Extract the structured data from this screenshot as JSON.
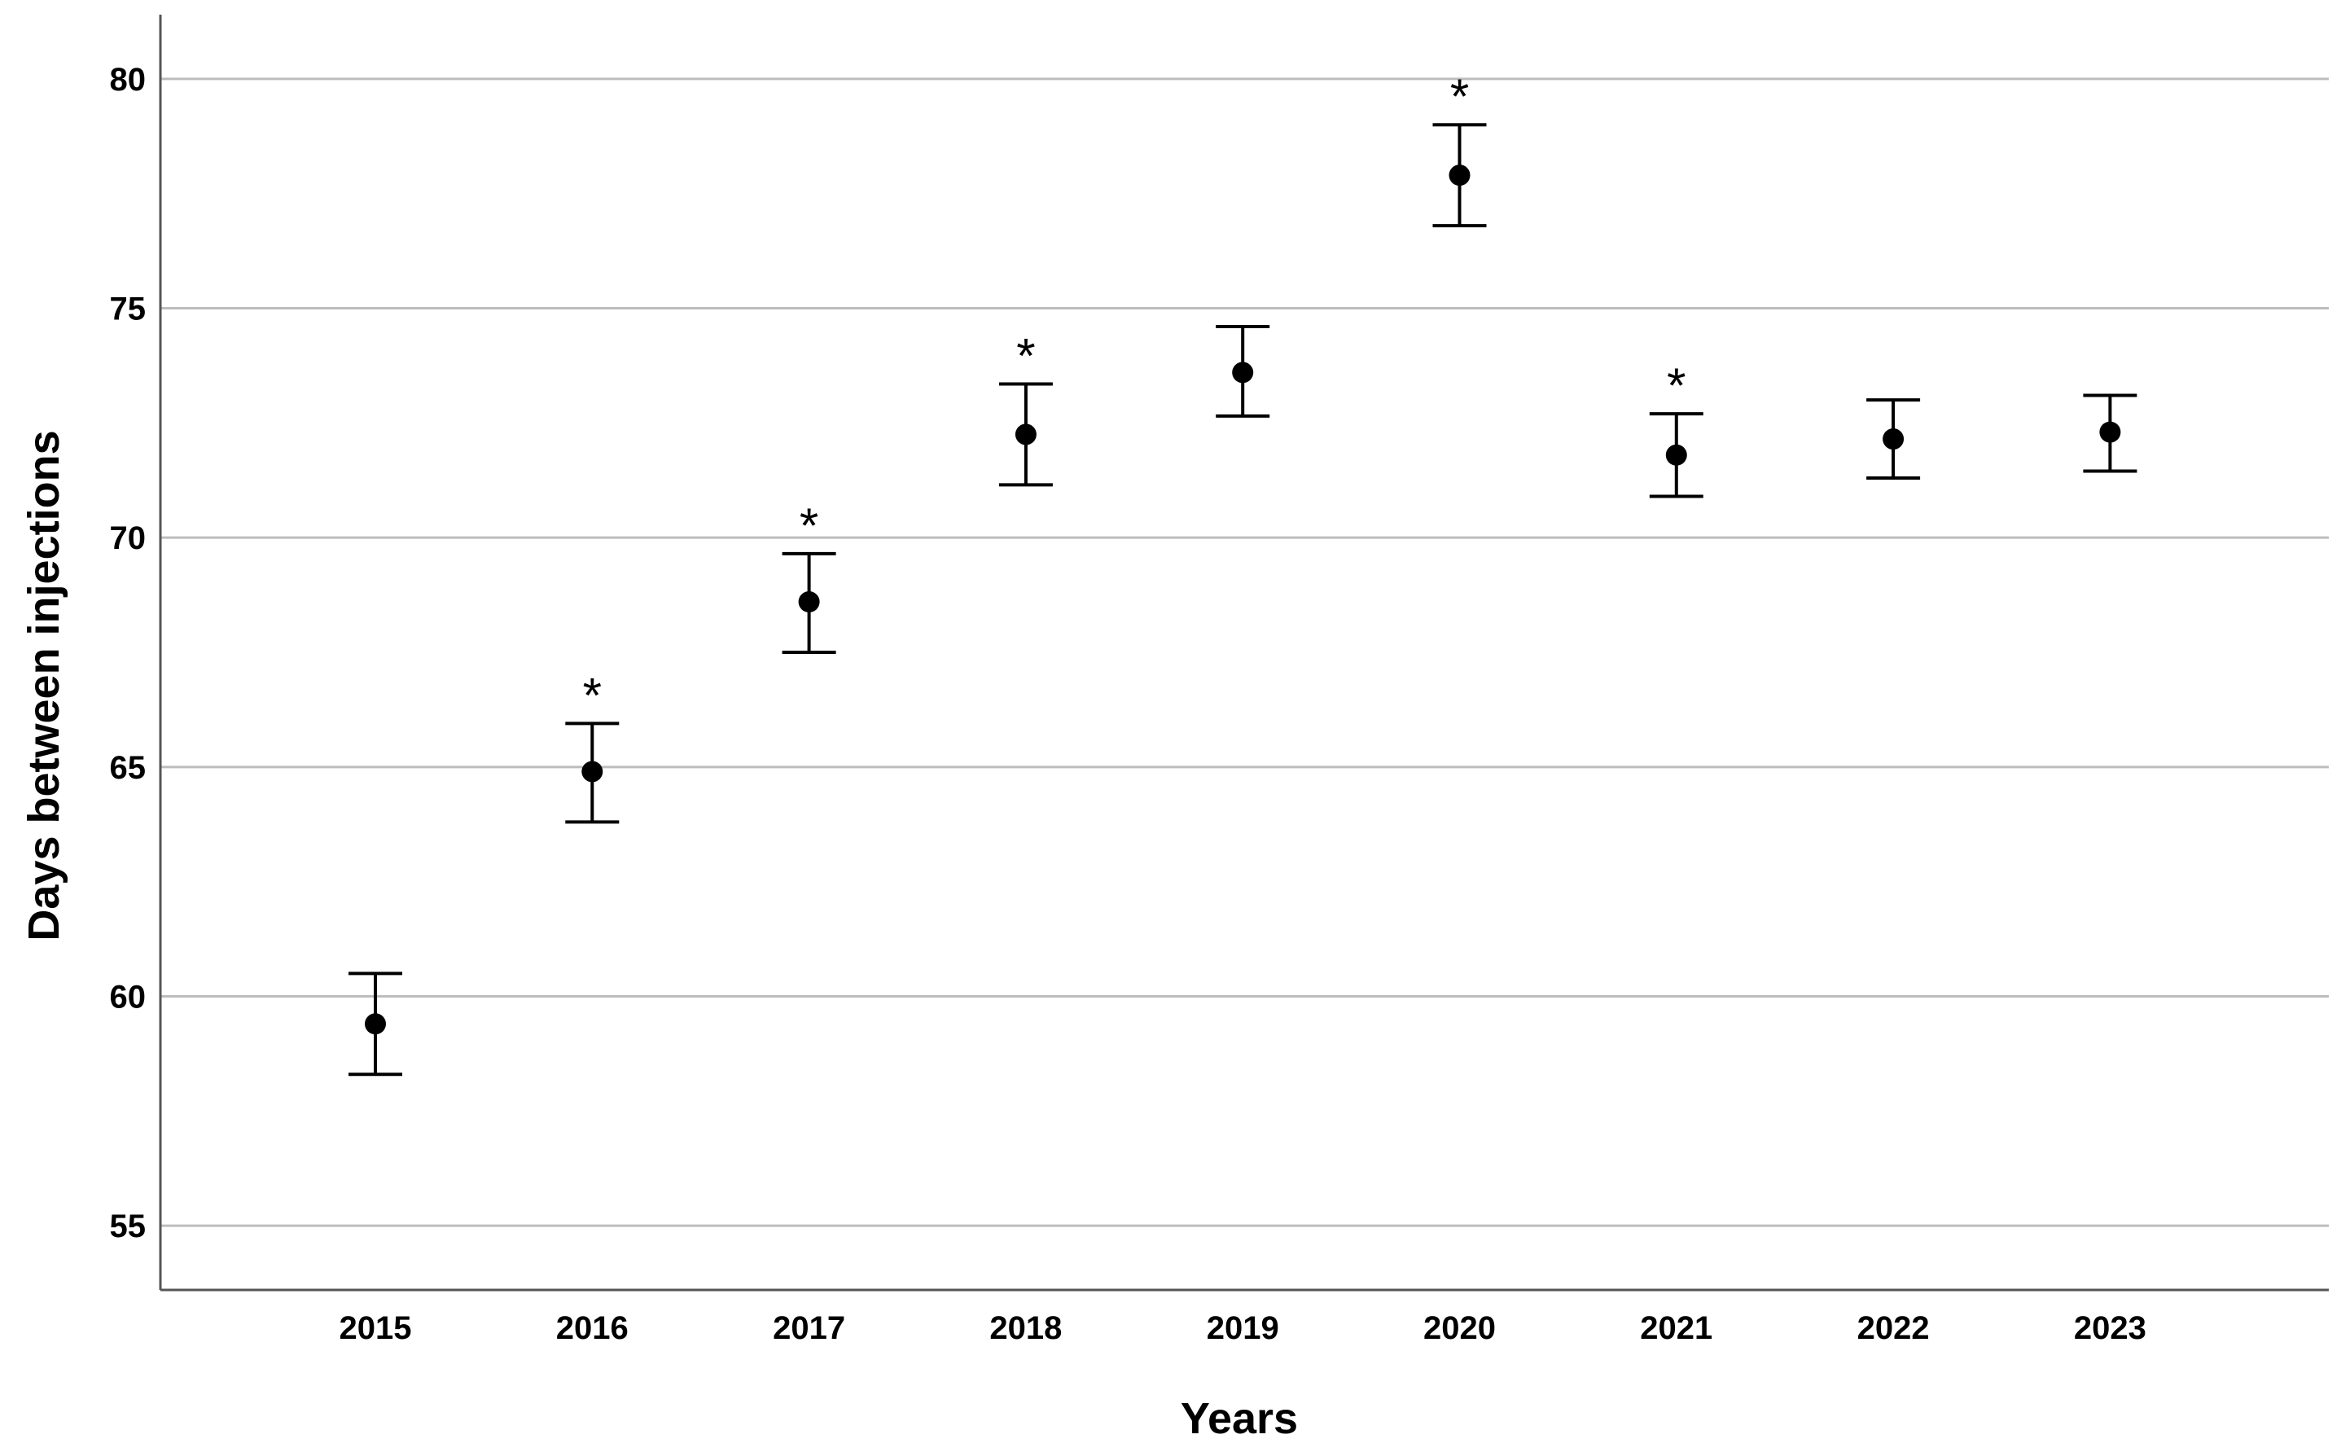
{
  "chart_data": {
    "type": "scatter",
    "xlabel": "Years",
    "ylabel": "Days between injections",
    "categories": [
      "2015",
      "2016",
      "2017",
      "2018",
      "2019",
      "2020",
      "2021",
      "2022",
      "2023"
    ],
    "ylim": [
      53.6,
      81.4
    ],
    "yticks": [
      "55",
      "60",
      "65",
      "70",
      "75",
      "80"
    ],
    "grid": true,
    "series": [
      {
        "values": [
          59.4,
          64.9,
          68.6,
          72.25,
          73.6,
          77.9,
          71.8,
          72.15,
          72.3
        ],
        "lower": [
          58.3,
          63.8,
          67.5,
          71.15,
          72.65,
          76.8,
          70.9,
          71.3,
          71.45
        ],
        "upper": [
          60.5,
          65.95,
          69.65,
          73.35,
          74.6,
          79.0,
          72.7,
          73.0,
          73.1
        ],
        "significance": [
          "",
          "*",
          "*",
          "*",
          "",
          "*",
          "*",
          "",
          ""
        ]
      }
    ],
    "colors": {
      "marker": "#000000",
      "grid": "#bdbdbd",
      "axis": "#555555"
    }
  }
}
